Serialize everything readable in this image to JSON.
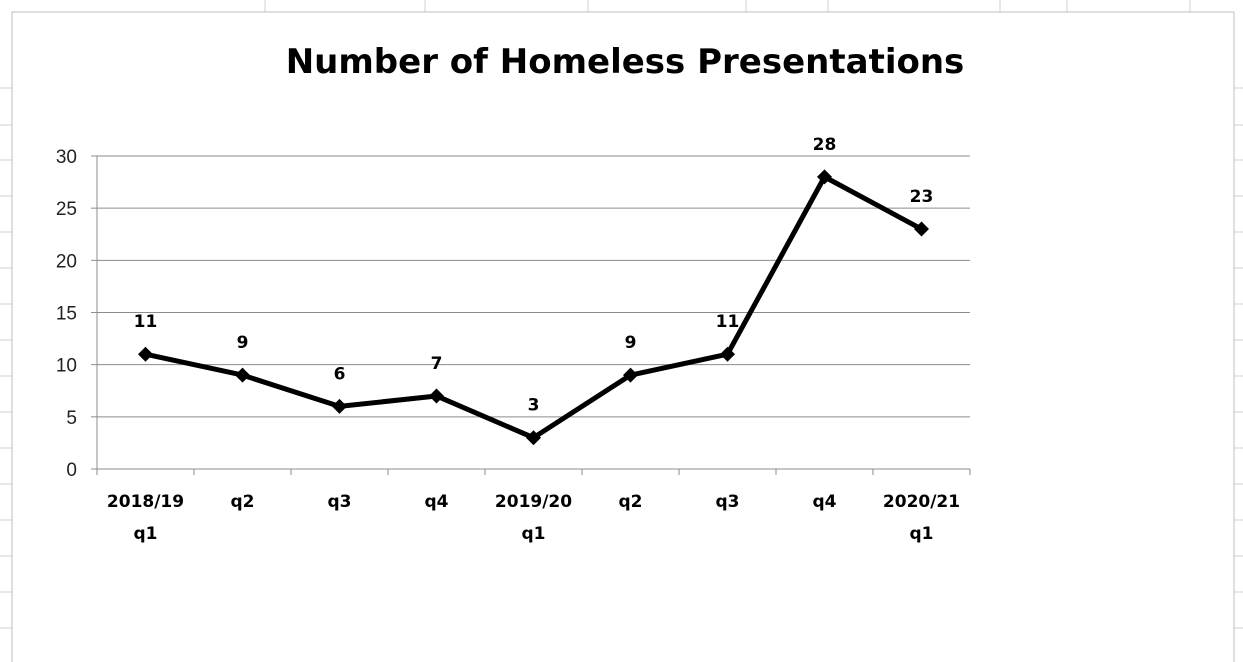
{
  "chart_data": {
    "type": "line",
    "title": "Number of Homeless Presentations",
    "categories": [
      [
        "2018/19",
        "q1"
      ],
      [
        "q2"
      ],
      [
        "q3"
      ],
      [
        "q4"
      ],
      [
        "2019/20",
        "q1"
      ],
      [
        "q2"
      ],
      [
        "q3"
      ],
      [
        "q4"
      ],
      [
        "2020/21",
        "q1"
      ]
    ],
    "series": [
      {
        "values": [
          11,
          9,
          6,
          7,
          3,
          9,
          11,
          28,
          23
        ]
      }
    ],
    "data_labels": [
      "11",
      "9",
      "6",
      "7",
      "3",
      "9",
      "11",
      "28",
      "23"
    ],
    "ylim": [
      0,
      30
    ],
    "yticks": [
      0,
      5,
      10,
      15,
      20,
      25,
      30
    ],
    "xlabel": "",
    "ylabel": "",
    "grid": true,
    "legend": "none",
    "marker": "diamond",
    "line_color": "#000000",
    "grid_color": "#8c8c8c"
  }
}
